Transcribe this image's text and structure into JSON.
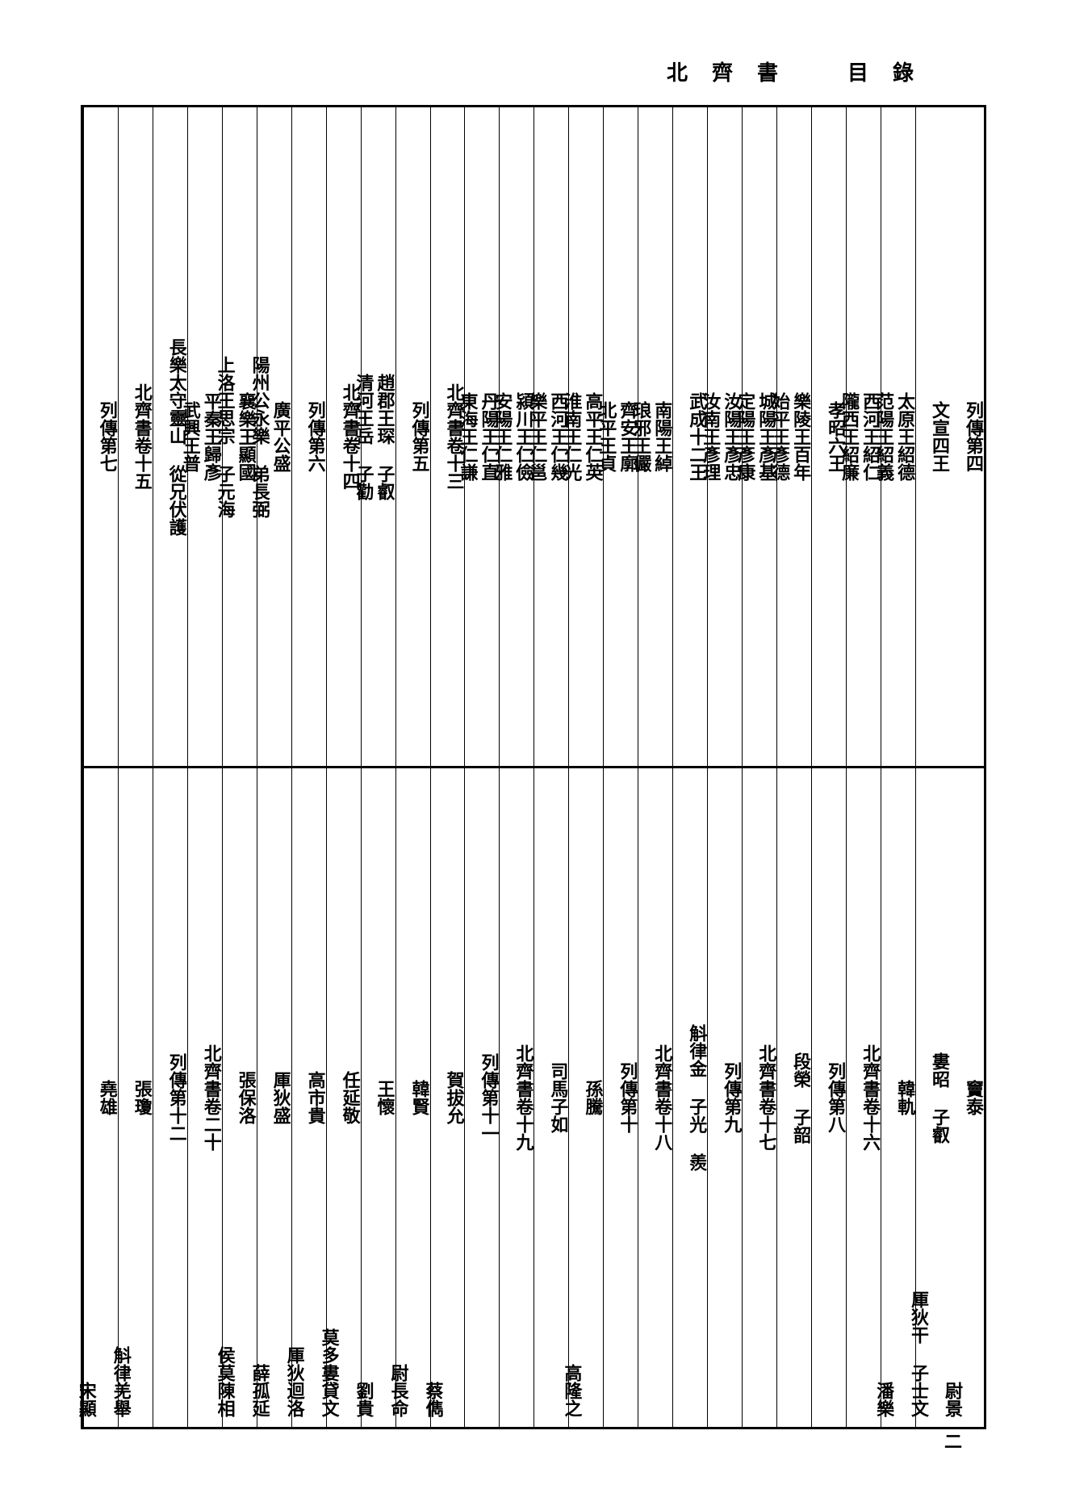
{
  "running_header": "北齊書　目錄",
  "page_number": "二",
  "top_section": {
    "columns": [
      {
        "cells": [
          "列傳第四"
        ]
      },
      {
        "cells": [
          "文宣四王"
        ]
      },
      {
        "cells": [
          "太原王紹德",
          "",
          "范陽王紹義"
        ]
      },
      {
        "cells": [
          "西河王紹仁",
          "",
          "隴西王紹廉"
        ]
      },
      {
        "cells": [
          "孝昭六王"
        ]
      },
      {
        "cells": [
          "樂陵王百年",
          "",
          "始平王彥德"
        ]
      },
      {
        "cells": [
          "城陽王彥基",
          "",
          "定陽王彥康"
        ]
      },
      {
        "cells": [
          "汝陽王彥忠",
          "",
          "汝南王彥理"
        ]
      },
      {
        "cells": [
          "武成十二王"
        ]
      },
      {
        "cells": [
          "南陽王綽",
          "",
          "琅邪王儼"
        ]
      },
      {
        "cells": [
          "齊安王廓",
          "",
          "北平王貞"
        ]
      },
      {
        "cells": [
          "高平王仁英",
          "",
          "淮南王仁光"
        ]
      },
      {
        "cells": [
          "西河王仁幾",
          "",
          "樂平王仁邕"
        ]
      },
      {
        "cells": [
          "潁川王仁儉",
          "",
          "安陽王仁雅"
        ]
      },
      {
        "cells": [
          "丹陽王仁直",
          "",
          "東海王仁謙"
        ]
      },
      {
        "cells": [
          "北齊書卷十三"
        ]
      },
      {
        "cells": [
          "列傳第五"
        ]
      },
      {
        "cells": [
          "趙郡王琛 子叡",
          "",
          "清河王岳 子勸"
        ]
      },
      {
        "cells": [
          "北齊書卷十四"
        ]
      },
      {
        "cells": [
          "列傳第六"
        ]
      },
      {
        "cells": [
          "廣平公盛",
          "",
          "陽州公永樂 弟長弼"
        ]
      },
      {
        "cells": [
          "襄樂王顯國",
          "",
          "上洛王思宗 子元海"
        ]
      },
      {
        "cells": [
          "平秦王歸彥",
          "",
          "武興王普"
        ]
      },
      {
        "cells": [
          "長樂太守靈山 從兄伏護"
        ]
      },
      {
        "cells": [
          "北齊書卷十五"
        ]
      },
      {
        "cells": [
          "列傳第七"
        ]
      }
    ]
  },
  "bottom_section": {
    "columns": [
      {
        "top": [
          "竇泰"
        ],
        "bottom": [
          "尉景"
        ]
      },
      {
        "top": [
          "婁昭 子叡"
        ],
        "bottom": [
          "厙狄干 子士文"
        ]
      },
      {
        "top": [
          "韓軌"
        ],
        "bottom": [
          "潘樂"
        ]
      },
      {
        "top": [
          "北齊書卷十六"
        ]
      },
      {
        "top": [
          "列傳第八"
        ]
      },
      {
        "top": [
          "段榮 子韶"
        ]
      },
      {
        "top": [
          "北齊書卷十七"
        ]
      },
      {
        "top": [
          "列傳第九"
        ]
      },
      {
        "top": [
          "斛律金 子光 羨"
        ]
      },
      {
        "top": [
          "北齊書卷十八"
        ]
      },
      {
        "top": [
          "列傳第十"
        ]
      },
      {
        "top": [
          "孫騰"
        ],
        "bottom": [
          "高隆之"
        ]
      },
      {
        "top": [
          "司馬子如"
        ]
      },
      {
        "top": [
          "北齊書卷十九"
        ]
      },
      {
        "top": [
          "列傳第十一"
        ]
      },
      {
        "top": [
          "賀拔允"
        ],
        "bottom": [
          "蔡儁"
        ]
      },
      {
        "top": [
          "韓賢"
        ],
        "bottom": [
          "尉長命"
        ]
      },
      {
        "top": [
          "王懷"
        ],
        "bottom": [
          "劉貴"
        ]
      },
      {
        "top": [
          "任延敬"
        ],
        "bottom": [
          "莫多婁貸文"
        ]
      },
      {
        "top": [
          "高市貴"
        ],
        "bottom": [
          "厙狄迴洛"
        ]
      },
      {
        "top": [
          "厙狄盛"
        ],
        "bottom": [
          "薛孤延"
        ]
      },
      {
        "top": [
          "張保洛"
        ],
        "bottom": [
          "侯莫陳相"
        ]
      },
      {
        "top": [
          "北齊書卷二十"
        ]
      },
      {
        "top": [
          "列傳第十二"
        ]
      },
      {
        "top": [
          "張瓊"
        ],
        "bottom": [
          "斛律羌舉"
        ]
      },
      {
        "top": [
          "堯雄"
        ],
        "bottom": [
          "宋顯"
        ]
      }
    ]
  }
}
